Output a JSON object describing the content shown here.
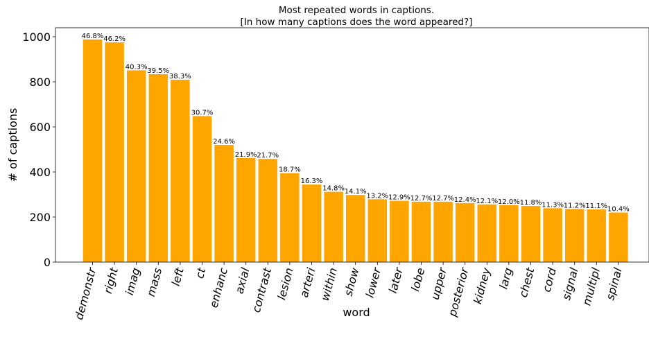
{
  "chart_data": {
    "type": "bar",
    "title_line1": "Most repeated words in captions.",
    "title_line2": "[In how many captions does the word appeared?]",
    "xlabel": "word",
    "ylabel": "# of captions",
    "ylim": [
      0,
      1040
    ],
    "yticks": [
      0,
      200,
      400,
      600,
      800,
      1000
    ],
    "grid": false,
    "categories": [
      "demonstr",
      "right",
      "imag",
      "mass",
      "left",
      "ct",
      "enhanc",
      "axial",
      "contrast",
      "lesion",
      "arteri",
      "within",
      "show",
      "lower",
      "later",
      "lobe",
      "upper",
      "posterior",
      "kidney",
      "larg",
      "chest",
      "cord",
      "signal",
      "multipl",
      "spinal"
    ],
    "values": [
      988,
      975,
      851,
      834,
      809,
      648,
      520,
      462,
      458,
      395,
      344,
      312,
      298,
      279,
      272,
      268,
      268,
      262,
      256,
      253,
      249,
      239,
      236,
      234,
      220
    ],
    "labels": [
      "46.8%",
      "46.2%",
      "40.3%",
      "39.5%",
      "38.3%",
      "30.7%",
      "24.6%",
      "21.9%",
      "21.7%",
      "18.7%",
      "16.3%",
      "14.8%",
      "14.1%",
      "13.2%",
      "12.9%",
      "12.7%",
      "12.7%",
      "12.4%",
      "12.1%",
      "12.0%",
      "11.8%",
      "11.3%",
      "11.2%",
      "11.1%",
      "10.4%"
    ],
    "bar_color": "#FFA500"
  }
}
